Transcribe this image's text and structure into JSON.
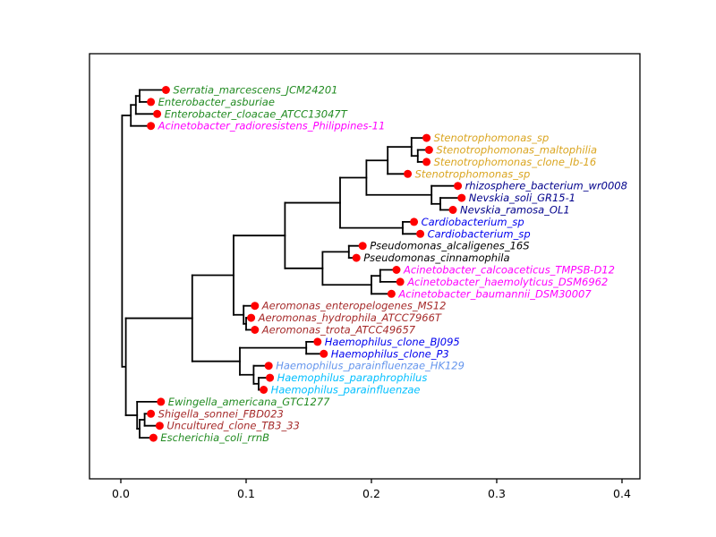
{
  "figure": {
    "background": "#ffffff",
    "description": "Phylogenetic tree (dendrogram) of bacterial 16S sequences with red leaf markers"
  },
  "chart_data": {
    "type": "dendrogram",
    "title": "",
    "xlabel": "",
    "ylabel": "",
    "xlim": [
      -0.025,
      0.4143
    ],
    "grid": false,
    "x_ticks": [
      {
        "value": 0.0,
        "label": "0.0"
      },
      {
        "value": 0.1,
        "label": "0.1"
      },
      {
        "value": 0.2,
        "label": "0.2"
      },
      {
        "value": 0.3,
        "label": "0.3"
      },
      {
        "value": 0.4,
        "label": "0.4"
      }
    ],
    "colors": {
      "branch": "#000000",
      "leaf_marker": "#ff0000"
    },
    "leaves": [
      {
        "label": "Serratia_marcescens_JCM24201",
        "color": "#228B22",
        "x": 0.036
      },
      {
        "label": "Enterobacter_asburiae",
        "color": "#228B22",
        "x": 0.024
      },
      {
        "label": "Enterobacter_cloacae_ATCC13047T",
        "color": "#228B22",
        "x": 0.029
      },
      {
        "label": "Acinetobacter_radioresistens_Philippines-11",
        "color": "#FF00FF",
        "x": 0.024
      },
      {
        "label": "Stenotrophomonas_sp",
        "color": "#DAA520",
        "x": 0.244
      },
      {
        "label": "Stenotrophomonas_maltophilia",
        "color": "#DAA520",
        "x": 0.246
      },
      {
        "label": "Stenotrophomonas_clone_Ib-16",
        "color": "#DAA520",
        "x": 0.244
      },
      {
        "label": "Stenotrophomonas_sp",
        "color": "#DAA520",
        "x": 0.229
      },
      {
        "label": "rhizosphere_bacterium_wr0008",
        "color": "#00008B",
        "x": 0.269
      },
      {
        "label": "Nevskia_soli_GR15-1",
        "color": "#00008B",
        "x": 0.272
      },
      {
        "label": "Nevskia_ramosa_OL1",
        "color": "#00008B",
        "x": 0.265
      },
      {
        "label": "Cardiobacterium_sp",
        "color": "#0000EE",
        "x": 0.234
      },
      {
        "label": "Cardiobacterium_sp",
        "color": "#0000EE",
        "x": 0.239
      },
      {
        "label": "Pseudomonas_alcaligenes_16S",
        "color": "#000000",
        "x": 0.193
      },
      {
        "label": "Pseudomonas_cinnamophila",
        "color": "#000000",
        "x": 0.188
      },
      {
        "label": "Acinetobacter_calcoaceticus_TMPSB-D12",
        "color": "#FF00FF",
        "x": 0.22
      },
      {
        "label": "Acinetobacter_haemolyticus_DSM6962",
        "color": "#FF00FF",
        "x": 0.223
      },
      {
        "label": "Acinetobacter_baumannii_DSM30007",
        "color": "#FF00FF",
        "x": 0.216
      },
      {
        "label": "Aeromonas_enteropelogenes_MS12",
        "color": "#A52A2A",
        "x": 0.107
      },
      {
        "label": "Aeromonas_hydrophila_ATCC7966T",
        "color": "#A52A2A",
        "x": 0.104
      },
      {
        "label": "Aeromonas_trota_ATCC49657",
        "color": "#A52A2A",
        "x": 0.107
      },
      {
        "label": "Haemophilus_clone_BJ095",
        "color": "#0000EE",
        "x": 0.157
      },
      {
        "label": "Haemophilus_clone_P3",
        "color": "#0000EE",
        "x": 0.162
      },
      {
        "label": "Haemophilus_parainfluenzae_HK129",
        "color": "#6495ED",
        "x": 0.118
      },
      {
        "label": "Haemophilus_paraphrophilus",
        "color": "#00BFFF",
        "x": 0.119
      },
      {
        "label": "Haemophilus_parainfluenzae",
        "color": "#00BFFF",
        "x": 0.114
      },
      {
        "label": "Ewingella_americana_GTC1277",
        "color": "#228B22",
        "x": 0.032
      },
      {
        "label": "Shigella_sonnei_FBD023",
        "color": "#A52A2A",
        "x": 0.024
      },
      {
        "label": "Uncultured_clone_TB3_33",
        "color": "#A52A2A",
        "x": 0.031
      },
      {
        "label": "Escherichia_coli_rrnB",
        "color": "#228B22",
        "x": 0.026
      }
    ],
    "tree": {
      "x": 0.001,
      "children": [
        {
          "x": 0.008,
          "children": [
            {
              "x": 0.012,
              "children": [
                {
                  "x": 0.015,
                  "children": [
                    {
                      "leaf": 0
                    },
                    {
                      "leaf": 1
                    }
                  ]
                },
                {
                  "leaf": 2
                }
              ]
            },
            {
              "leaf": 3
            }
          ]
        },
        {
          "x": 0.004,
          "children": [
            {
              "x": 0.057,
              "children": [
                {
                  "x": 0.09,
                  "children": [
                    {
                      "x": 0.131,
                      "children": [
                        {
                          "x": 0.175,
                          "children": [
                            {
                              "x": 0.196,
                              "children": [
                                {
                                  "x": 0.213,
                                  "children": [
                                    {
                                      "x": 0.232,
                                      "children": [
                                        {
                                          "leaf": 4
                                        },
                                        {
                                          "x": 0.237,
                                          "children": [
                                            {
                                              "leaf": 5
                                            },
                                            {
                                              "leaf": 6
                                            }
                                          ]
                                        }
                                      ]
                                    },
                                    {
                                      "leaf": 7
                                    }
                                  ]
                                },
                                {
                                  "x": 0.248,
                                  "children": [
                                    {
                                      "leaf": 8
                                    },
                                    {
                                      "x": 0.255,
                                      "children": [
                                        {
                                          "leaf": 9
                                        },
                                        {
                                          "leaf": 10
                                        }
                                      ]
                                    }
                                  ]
                                }
                              ]
                            },
                            {
                              "x": 0.225,
                              "children": [
                                {
                                  "leaf": 11
                                },
                                {
                                  "leaf": 12
                                }
                              ]
                            }
                          ]
                        },
                        {
                          "x": 0.161,
                          "children": [
                            {
                              "x": 0.182,
                              "children": [
                                {
                                  "leaf": 13
                                },
                                {
                                  "leaf": 14
                                }
                              ]
                            },
                            {
                              "x": 0.2,
                              "children": [
                                {
                                  "x": 0.207,
                                  "children": [
                                    {
                                      "leaf": 15
                                    },
                                    {
                                      "leaf": 16
                                    }
                                  ]
                                },
                                {
                                  "leaf": 17
                                }
                              ]
                            }
                          ]
                        }
                      ]
                    },
                    {
                      "x": 0.098,
                      "children": [
                        {
                          "leaf": 18
                        },
                        {
                          "x": 0.1,
                          "children": [
                            {
                              "leaf": 19
                            },
                            {
                              "leaf": 20
                            }
                          ]
                        }
                      ]
                    }
                  ]
                },
                {
                  "x": 0.095,
                  "children": [
                    {
                      "x": 0.148,
                      "children": [
                        {
                          "leaf": 21
                        },
                        {
                          "leaf": 22
                        }
                      ]
                    },
                    {
                      "x": 0.106,
                      "children": [
                        {
                          "leaf": 23
                        },
                        {
                          "x": 0.11,
                          "children": [
                            {
                              "leaf": 24
                            },
                            {
                              "leaf": 25
                            }
                          ]
                        }
                      ]
                    }
                  ]
                }
              ]
            },
            {
              "x": 0.013,
              "children": [
                {
                  "leaf": 26
                },
                {
                  "x": 0.015,
                  "children": [
                    {
                      "x": 0.019,
                      "children": [
                        {
                          "leaf": 27
                        },
                        {
                          "leaf": 28
                        }
                      ]
                    },
                    {
                      "leaf": 29
                    }
                  ]
                }
              ]
            }
          ]
        }
      ]
    }
  }
}
